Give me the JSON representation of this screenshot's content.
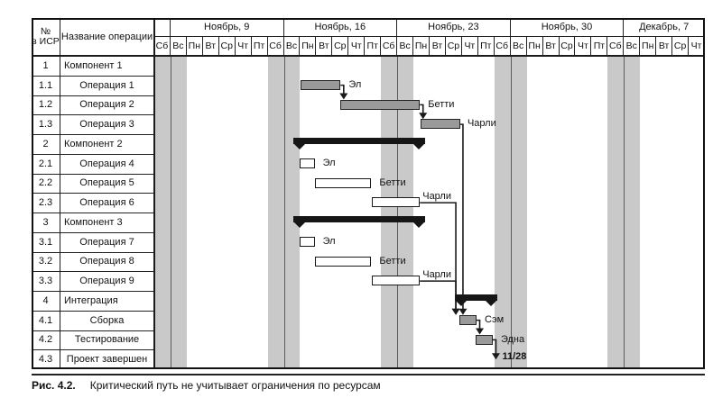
{
  "caption": {
    "figure_label": "Рис. 4.2.",
    "text": "Критический путь не учитывает ограничения по ресурсам"
  },
  "table": {
    "wbs_header_line1": "№",
    "wbs_header_line2": "в ИСР",
    "name_header": "Название операции",
    "rows": [
      {
        "wbs": "1",
        "name": "Компонент 1",
        "type": "component"
      },
      {
        "wbs": "1.1",
        "name": "Операция 1",
        "type": "operation"
      },
      {
        "wbs": "1.2",
        "name": "Операция 2",
        "type": "operation"
      },
      {
        "wbs": "1.3",
        "name": "Операция 3",
        "type": "operation"
      },
      {
        "wbs": "2",
        "name": "Компонент 2",
        "type": "component"
      },
      {
        "wbs": "2.1",
        "name": "Операция 4",
        "type": "operation"
      },
      {
        "wbs": "2.2",
        "name": "Операция 5",
        "type": "operation"
      },
      {
        "wbs": "2.3",
        "name": "Операция 6",
        "type": "operation"
      },
      {
        "wbs": "3",
        "name": "Компонент 3",
        "type": "component"
      },
      {
        "wbs": "3.1",
        "name": "Операция 7",
        "type": "operation"
      },
      {
        "wbs": "3.2",
        "name": "Операция 8",
        "type": "operation"
      },
      {
        "wbs": "3.3",
        "name": "Операция 9",
        "type": "operation"
      },
      {
        "wbs": "4",
        "name": "Интеграция",
        "type": "component"
      },
      {
        "wbs": "4.1",
        "name": "Сборка",
        "type": "operation"
      },
      {
        "wbs": "4.2",
        "name": "Тестирование",
        "type": "operation"
      },
      {
        "wbs": "4.3",
        "name": "Проект завершен",
        "type": "operation"
      }
    ]
  },
  "timeline": {
    "lead_day": "Сб",
    "weeks": [
      {
        "label": "Ноябрь, 9",
        "days": [
          "Вс",
          "Пн",
          "Вт",
          "Ср",
          "Чт",
          "Пт",
          "Сб"
        ]
      },
      {
        "label": "Ноябрь, 16",
        "days": [
          "Вс",
          "Пн",
          "Вт",
          "Ср",
          "Чт",
          "Пт",
          "Сб"
        ]
      },
      {
        "label": "Ноябрь, 23",
        "days": [
          "Вс",
          "Пн",
          "Вт",
          "Ср",
          "Чт",
          "Пт",
          "Сб"
        ]
      },
      {
        "label": "Ноябрь, 30",
        "days": [
          "Вс",
          "Пн",
          "Вт",
          "Ср",
          "Чт",
          "Пт",
          "Сб"
        ]
      },
      {
        "label": "Декабрь, 7",
        "days": [
          "Вс",
          "Пн",
          "Вт",
          "Ср",
          "Чт"
        ]
      }
    ],
    "weekend_pairs": [
      [
        0,
        1
      ],
      [
        7,
        8
      ],
      [
        14,
        15
      ],
      [
        21,
        22
      ],
      [
        28,
        29
      ]
    ]
  },
  "chart_data": {
    "type": "gantt",
    "unit": "day_columns_from_chart_start",
    "bars": [
      {
        "row": "1.1",
        "start_day": 9.05,
        "end_day": 11.5,
        "kind": "critical",
        "resource": "Эл"
      },
      {
        "row": "1.2",
        "start_day": 11.5,
        "end_day": 16.4,
        "kind": "critical",
        "resource": "Бетти"
      },
      {
        "row": "1.3",
        "start_day": 16.45,
        "end_day": 18.9,
        "kind": "critical",
        "resource": "Чарли",
        "label_placement": "after-drop"
      },
      {
        "row": "2",
        "start_day": 8.6,
        "end_day": 16.7,
        "kind": "summary"
      },
      {
        "row": "2.1",
        "start_day": 8.95,
        "end_day": 9.9,
        "kind": "task",
        "resource": "Эл"
      },
      {
        "row": "2.2",
        "start_day": 9.9,
        "end_day": 13.4,
        "kind": "task",
        "resource": "Бетти"
      },
      {
        "row": "2.3",
        "start_day": 13.45,
        "end_day": 16.4,
        "kind": "task",
        "resource": "Чарли",
        "label_placement": "above-end"
      },
      {
        "row": "3",
        "start_day": 8.6,
        "end_day": 16.7,
        "kind": "summary"
      },
      {
        "row": "3.1",
        "start_day": 8.95,
        "end_day": 9.9,
        "kind": "task",
        "resource": "Эл"
      },
      {
        "row": "3.2",
        "start_day": 9.9,
        "end_day": 13.4,
        "kind": "task",
        "resource": "Бетти"
      },
      {
        "row": "3.3",
        "start_day": 13.45,
        "end_day": 16.4,
        "kind": "task",
        "resource": "Чарли",
        "label_placement": "above-end"
      },
      {
        "row": "4",
        "start_day": 18.55,
        "end_day": 21.2,
        "kind": "summary"
      },
      {
        "row": "4.1",
        "start_day": 18.85,
        "end_day": 19.9,
        "kind": "critical",
        "resource": "Сэм"
      },
      {
        "row": "4.2",
        "start_day": 19.85,
        "end_day": 20.9,
        "kind": "critical",
        "resource": "Эдна"
      }
    ],
    "links": [
      {
        "from": "1.1",
        "to": "1.2",
        "route": "elbow"
      },
      {
        "from": "1.2",
        "to": "1.3",
        "route": "elbow"
      },
      {
        "from": "1.3",
        "to": "4.1",
        "route": "drop",
        "drop_day": 19.06
      },
      {
        "from": "2.3",
        "to": "4.1",
        "route": "drop",
        "drop_day": 18.62
      },
      {
        "from": "3.3",
        "to": "4.1",
        "route": "drop",
        "drop_day": 18.62
      },
      {
        "from": "4.1",
        "to": "4.2",
        "route": "elbow"
      },
      {
        "from": "4.2",
        "to": "milestone",
        "route": "elbow"
      }
    ],
    "milestone": {
      "row": "4.3",
      "label": "11/28"
    }
  },
  "colors": {
    "weekend_band": "#c9c9c9",
    "critical_bar": "#9a9a9a",
    "task_bar": "#ffffff",
    "summary_bar": "#161616",
    "line": "#1a1a1a"
  }
}
